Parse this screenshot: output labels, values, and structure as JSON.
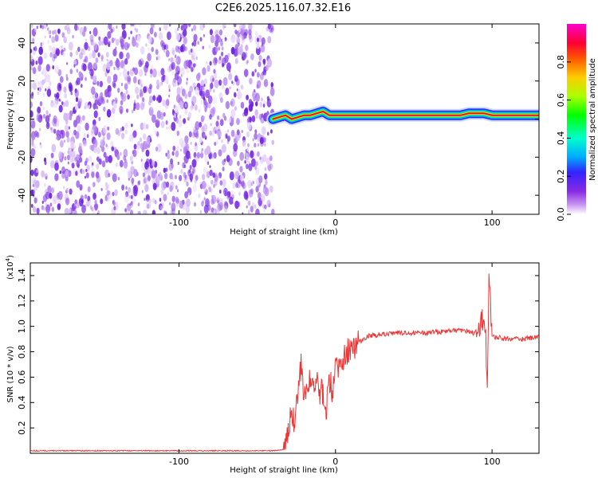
{
  "title": "C2E6.2025.116.07.32.E16",
  "colors": {
    "background": "#ffffff",
    "axis": "#000000",
    "snr_line": "#ee3333",
    "noise_purple": "#7a2ee6",
    "colormap": [
      "#ffffff",
      "#c896f0",
      "#8a2be2",
      "#3322ff",
      "#00aaff",
      "#00ffcc",
      "#00ff00",
      "#aaff00",
      "#ffcc00",
      "#ff5500",
      "#ff0033",
      "#ff00cc"
    ]
  },
  "chart_data": [
    {
      "type": "heatmap",
      "name": "spectrogram",
      "xlabel": "Height of straight line (km)",
      "ylabel": "Frequency (Hz)",
      "xlim": [
        -195,
        130
      ],
      "ylim": [
        -50,
        50
      ],
      "xticks": [
        -100,
        0,
        100
      ],
      "yticks": [
        -40,
        -20,
        0,
        20,
        40
      ],
      "noise_region_x": [
        -195,
        -40
      ],
      "signal_ridge": {
        "x": [
          -40,
          -36,
          -32,
          -28,
          -24,
          -20,
          -16,
          -12,
          -8,
          -4,
          0,
          10,
          20,
          30,
          40,
          50,
          60,
          70,
          80,
          85,
          90,
          95,
          100,
          110,
          120,
          130
        ],
        "y": [
          0,
          1,
          2,
          0,
          1,
          2,
          2,
          3,
          4,
          2,
          2,
          2,
          2,
          2,
          2,
          2,
          2,
          2,
          2,
          3,
          3,
          3,
          2,
          2,
          2,
          2
        ]
      },
      "colorbar": {
        "label": "Normalized spectral amplitude",
        "range": [
          0.0,
          1.0
        ],
        "ticks": [
          "0.0",
          "0.2",
          "0.4",
          "0.6",
          "0.8"
        ]
      }
    },
    {
      "type": "line",
      "name": "snr",
      "xlabel": "Height of straight line (km)",
      "ylabel": "SNR (10 * v/v)",
      "y_multiplier": "(x10",
      "y_multiplier_exp": "4",
      "y_multiplier_close": ")",
      "xlim": [
        -195,
        130
      ],
      "ylim": [
        0,
        1.5
      ],
      "xticks": [
        -100,
        0,
        100
      ],
      "yticks": [
        "0.2",
        "0.4",
        "0.6",
        "0.8",
        "1.0",
        "1.2",
        "1.4"
      ],
      "series": [
        {
          "x": [
            -195,
            -150,
            -100,
            -60,
            -40,
            -33,
            -30,
            -28,
            -26,
            -24,
            -22,
            -20,
            -18,
            -16,
            -14,
            -12,
            -10,
            -8,
            -6,
            -4,
            -2,
            0,
            4,
            8,
            12,
            16,
            20,
            30,
            40,
            50,
            60,
            70,
            80,
            88,
            92,
            94,
            96,
            97,
            98,
            100,
            110,
            120,
            130
          ],
          "y": [
            0.02,
            0.02,
            0.02,
            0.02,
            0.02,
            0.03,
            0.2,
            0.3,
            0.25,
            0.5,
            0.7,
            0.45,
            0.55,
            0.6,
            0.5,
            0.65,
            0.45,
            0.5,
            0.3,
            0.6,
            0.5,
            0.65,
            0.75,
            0.8,
            0.85,
            0.88,
            0.92,
            0.94,
            0.95,
            0.95,
            0.95,
            0.96,
            0.97,
            0.95,
            0.98,
            1.05,
            0.9,
            0.45,
            1.4,
            0.92,
            0.9,
            0.9,
            0.92
          ]
        }
      ]
    }
  ]
}
